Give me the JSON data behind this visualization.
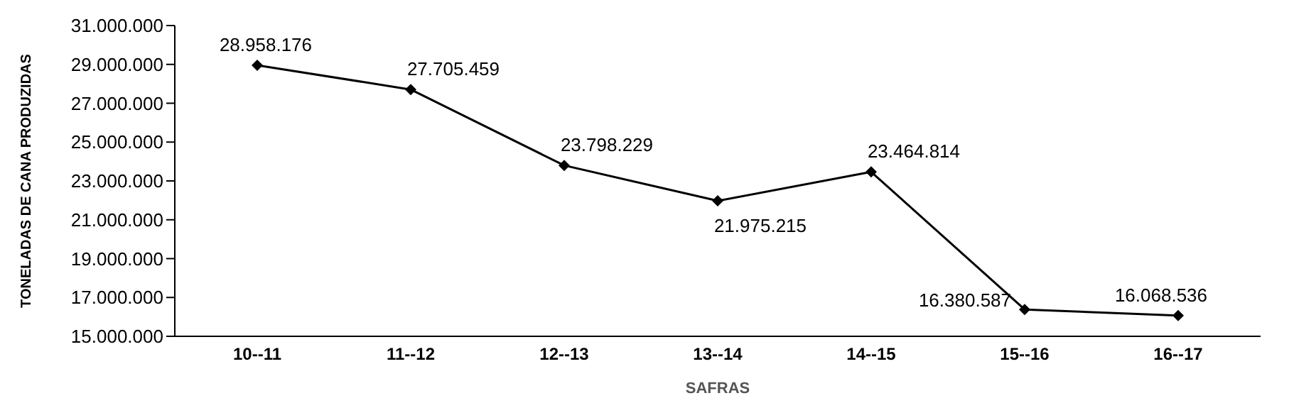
{
  "chart_data": {
    "type": "line",
    "xlabel": "SAFRAS",
    "ylabel": "TONELADAS DE CANA PRODUZIDAS",
    "categories": [
      "10--11",
      "11--12",
      "12--13",
      "13--14",
      "14--15",
      "15--16",
      "16--17"
    ],
    "series": [
      {
        "color": "#000000",
        "values": [
          28958176,
          27705459,
          23798229,
          21975215,
          23464814,
          16380587,
          16068536
        ],
        "value_labels": [
          "28.958.176",
          "27.705.459",
          "23.798.229",
          "21.975.215",
          "23.464.814",
          "16.380.587",
          "16.068.536"
        ]
      }
    ],
    "ylim": [
      15000000,
      31000000
    ],
    "yticks": [
      {
        "value": 15000000,
        "label": "15.000.000"
      },
      {
        "value": 17000000,
        "label": "17.000.000"
      },
      {
        "value": 19000000,
        "label": "19.000.000"
      },
      {
        "value": 21000000,
        "label": "21.000.000"
      },
      {
        "value": 23000000,
        "label": "23.000.000"
      },
      {
        "value": 25000000,
        "label": "25.000.000"
      },
      {
        "value": 27000000,
        "label": "27.000.000"
      },
      {
        "value": 29000000,
        "label": "29.000.000"
      },
      {
        "value": 31000000,
        "label": "31.000.000"
      }
    ],
    "grid": false,
    "legend": false,
    "marker": "diamond",
    "line_style": "solid"
  }
}
